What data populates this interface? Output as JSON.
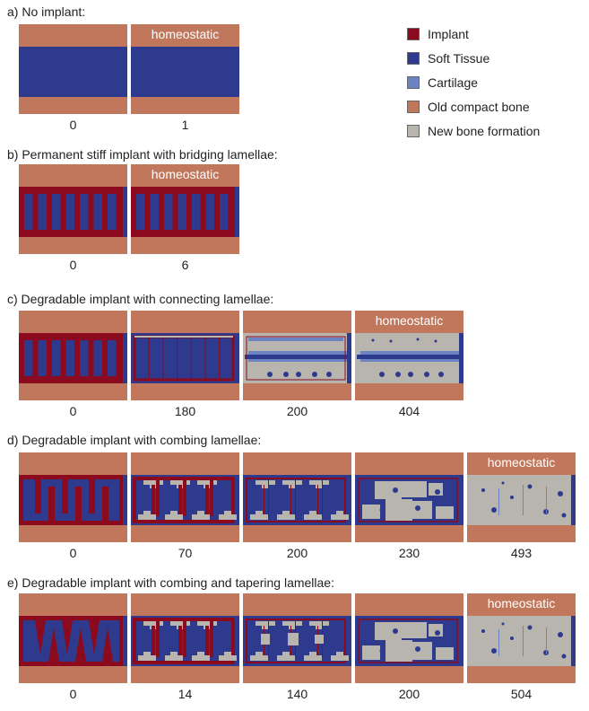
{
  "colors": {
    "implant": "#8B0A1E",
    "soft_tissue": "#2E3A8E",
    "cartilage": "#6C84C4",
    "old_bone": "#C0775B",
    "new_bone": "#B8B5AF"
  },
  "legend": [
    {
      "label": "Implant",
      "color": "#8B0A1E"
    },
    {
      "label": "Soft Tissue",
      "color": "#2E3A8E"
    },
    {
      "label": "Cartilage",
      "color": "#6C84C4"
    },
    {
      "label": "Old compact bone",
      "color": "#C0775B"
    },
    {
      "label": "New bone formation",
      "color": "#B8B5AF"
    }
  ],
  "homeostatic_label": "homeostatic",
  "rows": [
    {
      "title": "a) No implant:",
      "panels": [
        {
          "time": "0",
          "homeostatic": false
        },
        {
          "time": "1",
          "homeostatic": true
        }
      ]
    },
    {
      "title": "b) Permanent stiff implant with bridging lamellae:",
      "panels": [
        {
          "time": "0",
          "homeostatic": false
        },
        {
          "time": "6",
          "homeostatic": true
        }
      ]
    },
    {
      "title": "c) Degradable implant with connecting lamellae:",
      "panels": [
        {
          "time": "0",
          "homeostatic": false
        },
        {
          "time": "180",
          "homeostatic": false
        },
        {
          "time": "200",
          "homeostatic": false
        },
        {
          "time": "404",
          "homeostatic": true
        }
      ]
    },
    {
      "title": "d) Degradable implant with combing lamellae:",
      "panels": [
        {
          "time": "0",
          "homeostatic": false
        },
        {
          "time": "70",
          "homeostatic": false
        },
        {
          "time": "200",
          "homeostatic": false
        },
        {
          "time": "230",
          "homeostatic": false
        },
        {
          "time": "493",
          "homeostatic": true
        }
      ]
    },
    {
      "title": "e) Degradable implant with combing and tapering lamellae:",
      "panels": [
        {
          "time": "0",
          "homeostatic": false
        },
        {
          "time": "14",
          "homeostatic": false
        },
        {
          "time": "140",
          "homeostatic": false
        },
        {
          "time": "200",
          "homeostatic": false
        },
        {
          "time": "504",
          "homeostatic": true
        }
      ]
    }
  ]
}
